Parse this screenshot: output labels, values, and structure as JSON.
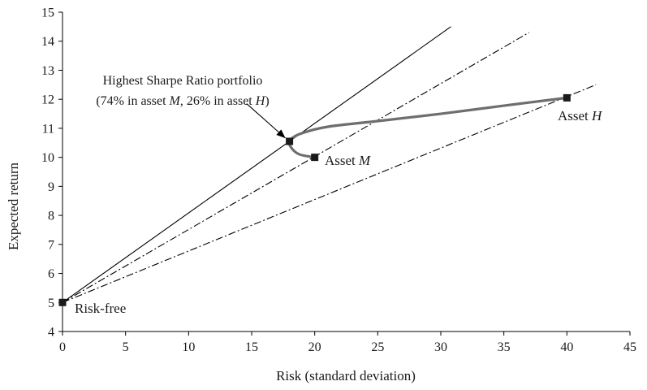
{
  "chart_data": {
    "type": "line",
    "xlabel": "Risk (standard deviation)",
    "ylabel": "Expected return",
    "xlim": [
      0,
      45
    ],
    "ylim": [
      4,
      15
    ],
    "x_ticks": [
      0,
      5,
      10,
      15,
      20,
      25,
      30,
      35,
      40,
      45
    ],
    "y_ticks": [
      4,
      5,
      6,
      7,
      8,
      9,
      10,
      11,
      12,
      13,
      14,
      15
    ],
    "grid": false,
    "lines": [
      {
        "style": "solid",
        "points": [
          [
            0,
            5
          ],
          [
            30.8,
            14.5
          ]
        ]
      },
      {
        "style": "dash-dot",
        "points": [
          [
            0,
            5
          ],
          [
            37,
            14.3
          ]
        ]
      },
      {
        "style": "dash-dot",
        "points": [
          [
            0,
            5
          ],
          [
            42.3,
            12.5
          ]
        ]
      }
    ],
    "frontier": {
      "style": "thick-gray",
      "points": [
        [
          20,
          10
        ],
        [
          18.8,
          10.1
        ],
        [
          18.2,
          10.3
        ],
        [
          18,
          10.55
        ],
        [
          18.8,
          10.8
        ],
        [
          21,
          11.05
        ],
        [
          25,
          11.25
        ],
        [
          30,
          11.5
        ],
        [
          35,
          11.78
        ],
        [
          40,
          12.05
        ]
      ]
    },
    "points": [
      {
        "label_text": "Risk-free",
        "x": 0,
        "y": 5
      },
      {
        "label_text": "Asset ",
        "label_italic": "M",
        "x": 20,
        "y": 10
      },
      {
        "label_text": "Asset ",
        "label_italic": "H",
        "x": 40,
        "y": 12.05
      },
      {
        "label_text": "",
        "x": 18,
        "y": 10.55
      }
    ],
    "annotation": {
      "line1": "Highest Sharpe Ratio portfolio",
      "line2_a": "(74% in asset ",
      "line2_b": "M",
      "line2_c": ", 26% in asset ",
      "line2_d": "H",
      "line2_e": ")",
      "arrow_from": [
        14.6,
        11.85
      ],
      "arrow_to": [
        18,
        10.55
      ]
    },
    "colors": {
      "frontier": "#6e6e6e",
      "lines": "#000000",
      "markers": "#1a1a1a"
    }
  }
}
